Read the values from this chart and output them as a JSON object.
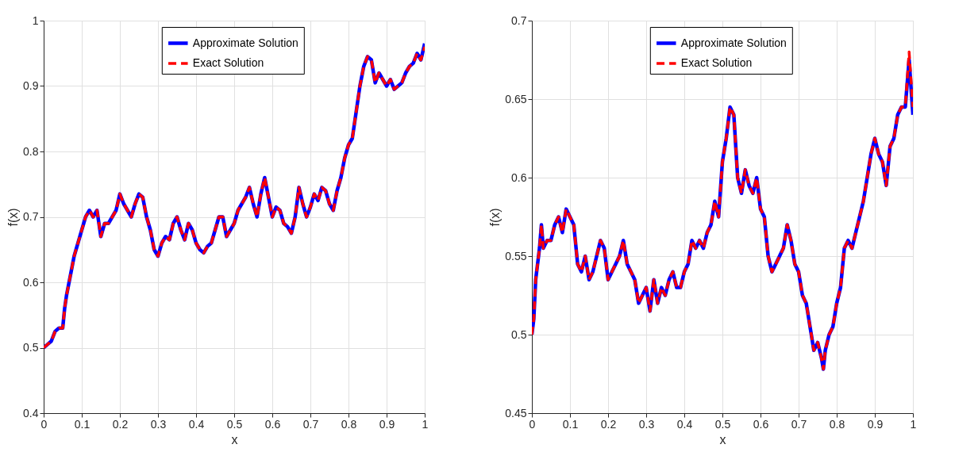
{
  "chart_data": [
    {
      "type": "line",
      "xlabel": "x",
      "ylabel": "f(x)",
      "xlim": [
        0,
        1
      ],
      "ylim": [
        0.4,
        1
      ],
      "xticks": [
        0,
        0.1,
        0.2,
        0.3,
        0.4,
        0.5,
        0.6,
        0.7,
        0.8,
        0.9,
        1
      ],
      "yticks": [
        0.4,
        0.5,
        0.6,
        0.7,
        0.8,
        0.9,
        1
      ],
      "grid": true,
      "legend": "top",
      "x": [
        0,
        0.01,
        0.02,
        0.03,
        0.04,
        0.05,
        0.055,
        0.06,
        0.07,
        0.08,
        0.09,
        0.1,
        0.11,
        0.12,
        0.13,
        0.14,
        0.15,
        0.16,
        0.17,
        0.18,
        0.19,
        0.2,
        0.21,
        0.22,
        0.23,
        0.24,
        0.25,
        0.26,
        0.27,
        0.28,
        0.29,
        0.3,
        0.31,
        0.32,
        0.33,
        0.34,
        0.35,
        0.36,
        0.37,
        0.38,
        0.39,
        0.4,
        0.41,
        0.42,
        0.43,
        0.44,
        0.45,
        0.46,
        0.47,
        0.48,
        0.49,
        0.5,
        0.51,
        0.52,
        0.53,
        0.54,
        0.55,
        0.56,
        0.57,
        0.58,
        0.59,
        0.6,
        0.61,
        0.62,
        0.63,
        0.64,
        0.65,
        0.66,
        0.67,
        0.68,
        0.69,
        0.7,
        0.71,
        0.72,
        0.73,
        0.74,
        0.75,
        0.76,
        0.77,
        0.78,
        0.79,
        0.8,
        0.81,
        0.82,
        0.83,
        0.84,
        0.85,
        0.86,
        0.87,
        0.88,
        0.89,
        0.9,
        0.91,
        0.92,
        0.93,
        0.94,
        0.95,
        0.96,
        0.97,
        0.98,
        0.99,
        1
      ],
      "series": [
        {
          "name": "Approximate Solution",
          "color": "#0000ff",
          "line_style": "solid",
          "values": [
            0.5,
            0.505,
            0.51,
            0.525,
            0.53,
            0.53,
            0.56,
            0.58,
            0.61,
            0.64,
            0.66,
            0.68,
            0.7,
            0.71,
            0.7,
            0.71,
            0.67,
            0.69,
            0.69,
            0.7,
            0.71,
            0.735,
            0.72,
            0.71,
            0.7,
            0.72,
            0.735,
            0.73,
            0.7,
            0.68,
            0.65,
            0.64,
            0.66,
            0.67,
            0.665,
            0.69,
            0.7,
            0.68,
            0.665,
            0.69,
            0.68,
            0.66,
            0.65,
            0.645,
            0.655,
            0.66,
            0.68,
            0.7,
            0.7,
            0.67,
            0.68,
            0.69,
            0.71,
            0.72,
            0.73,
            0.745,
            0.72,
            0.7,
            0.735,
            0.76,
            0.73,
            0.7,
            0.715,
            0.71,
            0.69,
            0.685,
            0.675,
            0.7,
            0.745,
            0.72,
            0.7,
            0.715,
            0.735,
            0.725,
            0.745,
            0.74,
            0.72,
            0.71,
            0.74,
            0.76,
            0.79,
            0.81,
            0.82,
            0.86,
            0.9,
            0.93,
            0.945,
            0.94,
            0.905,
            0.92,
            0.91,
            0.9,
            0.91,
            0.895,
            0.9,
            0.905,
            0.92,
            0.93,
            0.935,
            0.95,
            0.94,
            0.965
          ]
        },
        {
          "name": "Exact Solution",
          "color": "#ff0000",
          "line_style": "dashed",
          "values": [
            0.5,
            0.505,
            0.51,
            0.525,
            0.53,
            0.53,
            0.56,
            0.58,
            0.61,
            0.64,
            0.66,
            0.68,
            0.7,
            0.71,
            0.7,
            0.71,
            0.67,
            0.69,
            0.69,
            0.7,
            0.71,
            0.735,
            0.72,
            0.71,
            0.7,
            0.72,
            0.735,
            0.73,
            0.7,
            0.68,
            0.65,
            0.64,
            0.66,
            0.67,
            0.665,
            0.69,
            0.7,
            0.68,
            0.665,
            0.69,
            0.68,
            0.66,
            0.65,
            0.645,
            0.655,
            0.66,
            0.68,
            0.7,
            0.7,
            0.67,
            0.68,
            0.69,
            0.71,
            0.72,
            0.73,
            0.745,
            0.72,
            0.7,
            0.735,
            0.76,
            0.73,
            0.7,
            0.715,
            0.71,
            0.69,
            0.685,
            0.675,
            0.7,
            0.745,
            0.72,
            0.7,
            0.715,
            0.735,
            0.725,
            0.745,
            0.74,
            0.72,
            0.71,
            0.74,
            0.76,
            0.79,
            0.81,
            0.82,
            0.86,
            0.9,
            0.93,
            0.945,
            0.94,
            0.905,
            0.92,
            0.91,
            0.9,
            0.91,
            0.895,
            0.9,
            0.905,
            0.92,
            0.93,
            0.935,
            0.95,
            0.94,
            0.96
          ]
        }
      ]
    },
    {
      "type": "line",
      "xlabel": "x",
      "ylabel": "f(x)",
      "xlim": [
        0,
        1
      ],
      "ylim": [
        0.45,
        0.7
      ],
      "xticks": [
        0,
        0.1,
        0.2,
        0.3,
        0.4,
        0.5,
        0.6,
        0.7,
        0.8,
        0.9,
        1
      ],
      "yticks": [
        0.45,
        0.5,
        0.55,
        0.6,
        0.65,
        0.7
      ],
      "grid": true,
      "legend": "top",
      "x": [
        0,
        0.005,
        0.01,
        0.02,
        0.025,
        0.03,
        0.04,
        0.05,
        0.06,
        0.07,
        0.08,
        0.09,
        0.1,
        0.11,
        0.12,
        0.13,
        0.14,
        0.15,
        0.16,
        0.17,
        0.18,
        0.19,
        0.2,
        0.21,
        0.22,
        0.23,
        0.24,
        0.25,
        0.26,
        0.27,
        0.28,
        0.29,
        0.3,
        0.31,
        0.32,
        0.33,
        0.34,
        0.35,
        0.36,
        0.37,
        0.38,
        0.39,
        0.4,
        0.41,
        0.42,
        0.43,
        0.44,
        0.45,
        0.46,
        0.47,
        0.48,
        0.49,
        0.5,
        0.51,
        0.52,
        0.53,
        0.54,
        0.55,
        0.56,
        0.57,
        0.58,
        0.59,
        0.6,
        0.61,
        0.62,
        0.63,
        0.64,
        0.65,
        0.66,
        0.67,
        0.68,
        0.69,
        0.7,
        0.71,
        0.72,
        0.73,
        0.74,
        0.75,
        0.76,
        0.765,
        0.77,
        0.78,
        0.79,
        0.8,
        0.81,
        0.82,
        0.83,
        0.84,
        0.85,
        0.86,
        0.87,
        0.88,
        0.89,
        0.9,
        0.91,
        0.92,
        0.93,
        0.94,
        0.95,
        0.96,
        0.97,
        0.98,
        0.99,
        1
      ],
      "series": [
        {
          "name": "Approximate Solution",
          "color": "#0000ff",
          "line_style": "solid",
          "values": [
            0.5,
            0.51,
            0.535,
            0.555,
            0.57,
            0.555,
            0.56,
            0.56,
            0.57,
            0.575,
            0.565,
            0.58,
            0.575,
            0.57,
            0.545,
            0.54,
            0.55,
            0.535,
            0.54,
            0.55,
            0.56,
            0.555,
            0.535,
            0.54,
            0.545,
            0.55,
            0.56,
            0.545,
            0.54,
            0.535,
            0.52,
            0.525,
            0.53,
            0.515,
            0.535,
            0.52,
            0.53,
            0.525,
            0.535,
            0.54,
            0.53,
            0.53,
            0.54,
            0.545,
            0.56,
            0.555,
            0.56,
            0.555,
            0.565,
            0.57,
            0.585,
            0.575,
            0.61,
            0.625,
            0.645,
            0.64,
            0.6,
            0.59,
            0.605,
            0.595,
            0.59,
            0.6,
            0.58,
            0.575,
            0.55,
            0.54,
            0.545,
            0.55,
            0.555,
            0.57,
            0.56,
            0.545,
            0.54,
            0.525,
            0.52,
            0.505,
            0.49,
            0.495,
            0.485,
            0.478,
            0.49,
            0.5,
            0.505,
            0.52,
            0.53,
            0.555,
            0.56,
            0.555,
            0.565,
            0.575,
            0.585,
            0.6,
            0.615,
            0.625,
            0.615,
            0.61,
            0.595,
            0.62,
            0.625,
            0.64,
            0.645,
            0.645,
            0.675,
            0.64
          ]
        },
        {
          "name": "Exact Solution",
          "color": "#ff0000",
          "line_style": "dashed",
          "values": [
            0.5,
            0.51,
            0.535,
            0.555,
            0.57,
            0.555,
            0.56,
            0.56,
            0.57,
            0.575,
            0.565,
            0.58,
            0.575,
            0.57,
            0.545,
            0.54,
            0.55,
            0.535,
            0.54,
            0.55,
            0.56,
            0.555,
            0.535,
            0.54,
            0.545,
            0.55,
            0.56,
            0.545,
            0.54,
            0.535,
            0.52,
            0.525,
            0.53,
            0.515,
            0.535,
            0.52,
            0.53,
            0.525,
            0.535,
            0.54,
            0.53,
            0.53,
            0.54,
            0.545,
            0.56,
            0.555,
            0.56,
            0.555,
            0.565,
            0.57,
            0.585,
            0.575,
            0.61,
            0.625,
            0.645,
            0.64,
            0.6,
            0.59,
            0.605,
            0.595,
            0.59,
            0.6,
            0.58,
            0.575,
            0.55,
            0.54,
            0.545,
            0.55,
            0.555,
            0.57,
            0.56,
            0.545,
            0.54,
            0.525,
            0.52,
            0.505,
            0.49,
            0.495,
            0.485,
            0.478,
            0.49,
            0.5,
            0.505,
            0.52,
            0.53,
            0.555,
            0.56,
            0.555,
            0.565,
            0.575,
            0.585,
            0.6,
            0.615,
            0.625,
            0.615,
            0.61,
            0.595,
            0.62,
            0.625,
            0.64,
            0.645,
            0.645,
            0.68,
            0.645
          ]
        }
      ]
    }
  ]
}
